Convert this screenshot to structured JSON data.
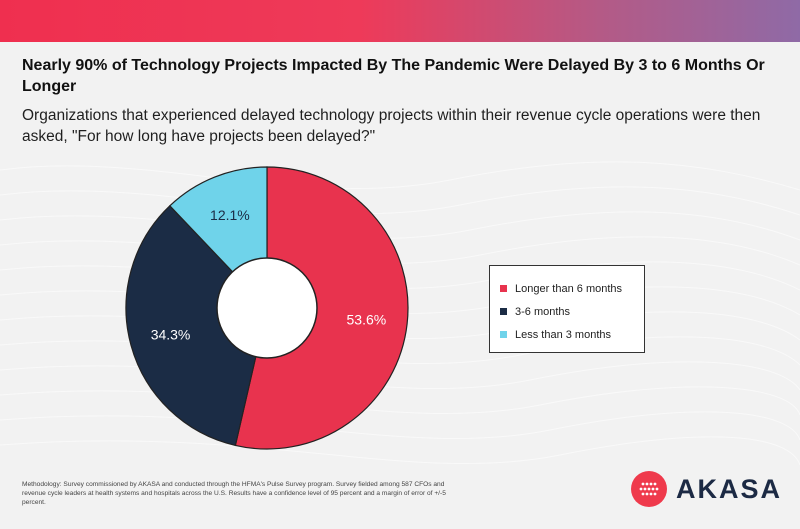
{
  "title": "Nearly 90% of Technology Projects Impacted By The Pandemic Were Delayed By 3 to 6 Months Or Longer",
  "subtitle": "Organizations that experienced delayed technology projects within their revenue cycle operations were then asked, \"For how long have projects been delayed?\"",
  "chart_data": {
    "type": "pie",
    "variant": "donut",
    "categories": [
      "Longer than 6 months",
      "3-6 months",
      "Less than 3 months"
    ],
    "values": [
      53.6,
      34.3,
      12.1
    ],
    "labels": [
      "53.6%",
      "34.3%",
      "12.1%"
    ],
    "colors": [
      "#e8334e",
      "#1b2c45",
      "#6fd3ea"
    ],
    "start": "12 o'clock, clockwise",
    "legend_position": "right"
  },
  "footnote": "Methodology: Survey commissioned by AKASA and conducted through the HFMA's Pulse Survey program. Survey fielded among 587 CFOs and revenue cycle leaders at health systems and hospitals across the U.S. Results have a confidence level of 95 percent and a margin of error of +/-5 percent.",
  "brand": {
    "name": "AKASA",
    "color": "#ef3a4c",
    "text_color": "#1c2a44"
  }
}
